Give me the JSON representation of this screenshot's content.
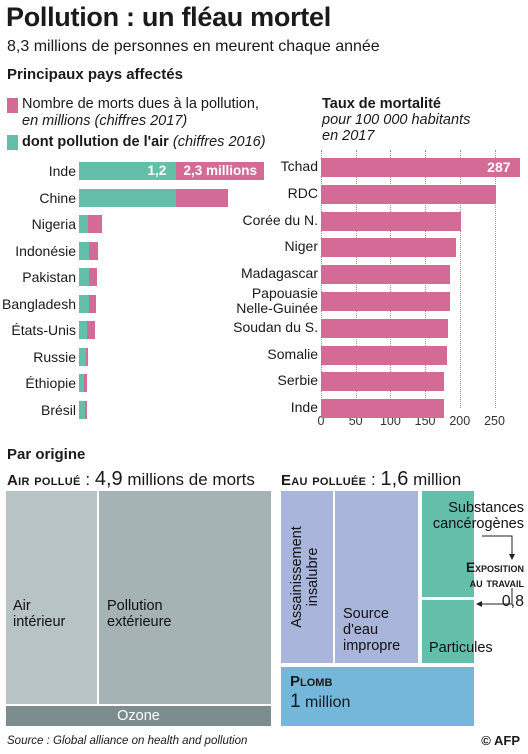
{
  "header": {
    "title": "Pollution : un fléau mortel",
    "subtitle": "8,3 millions de personnes en meurent chaque année",
    "section_title": "Principaux pays affectés"
  },
  "legend": {
    "deaths_label": "Nombre de morts dues à la pollution,",
    "deaths_sub": "en millions (chiffres 2017)",
    "air_label": "dont pollution de l'air",
    "air_sub": "(chiffres 2016)",
    "rate_title": "Taux de mortalité",
    "rate_sub1": "pour 100 000 habitants",
    "rate_sub2": "en 2017"
  },
  "colors": {
    "total": "#d46b97",
    "air": "#63bfaa",
    "air_interior": "#b7c3c4",
    "air_exterior": "#a6b3b5",
    "ozone": "#7c8d90",
    "water": "#a9b5db",
    "workplace": "#63bfaa",
    "lead": "#74b7db"
  },
  "chart_data": [
    {
      "type": "bar",
      "orientation": "horizontal",
      "title": "Principaux pays affectés",
      "categories": [
        "Inde",
        "Chine",
        "Nigeria",
        "Indonésie",
        "Pakistan",
        "Bangladesh",
        "États-Unis",
        "Russie",
        "Éthiopie",
        "Brésil"
      ],
      "series": [
        {
          "name": "Nombre de morts dues à la pollution, en millions (chiffres 2017)",
          "values": [
            2.3,
            1.85,
            0.28,
            0.23,
            0.22,
            0.21,
            0.2,
            0.11,
            0.1,
            0.1
          ]
        },
        {
          "name": "dont pollution de l'air (chiffres 2016)",
          "values": [
            1.2,
            1.2,
            0.11,
            0.12,
            0.13,
            0.12,
            0.1,
            0.09,
            0.06,
            0.07
          ]
        }
      ],
      "data_labels": [
        "1,2",
        "2,3 millions"
      ],
      "xlim": [
        0,
        2.3
      ]
    },
    {
      "type": "bar",
      "orientation": "horizontal",
      "title": "Taux de mortalité",
      "subtitle": "pour 100 000 habitants en 2017",
      "categories": [
        "Tchad",
        "RDC",
        "Corée du N.",
        "Niger",
        "Madagascar",
        "Papouasie Nelle-Guinée",
        "Soudan du S.",
        "Somalie",
        "Serbie",
        "Inde"
      ],
      "values": [
        287,
        252,
        202,
        195,
        186,
        186,
        183,
        182,
        177,
        177
      ],
      "data_labels": [
        "287"
      ],
      "xticks": [
        "0",
        "50",
        "100",
        "150",
        "200",
        "250"
      ],
      "xlim": [
        0,
        287
      ],
      "grid": true
    },
    {
      "type": "treemap",
      "title": "Par origine",
      "groups": [
        {
          "name": "Air pollué",
          "total_label": "4,9",
          "total_unit": "millions de morts",
          "items": [
            {
              "name": "Air intérieur",
              "value": 1.6
            },
            {
              "name": "Pollution extérieure",
              "value": 3.1
            },
            {
              "name": "Ozone",
              "value": 0.2
            }
          ]
        },
        {
          "name": "Eau polluée",
          "total_label": "1,6",
          "total_unit": "million",
          "items": [
            {
              "name": "Assainissement insalubre",
              "value": 0.8
            },
            {
              "name": "Source d'eau impropre",
              "value": 0.8
            }
          ]
        },
        {
          "name": "Exposition au travail",
          "total_label": "0,8",
          "items": [
            {
              "name": "Substances cancérogènes",
              "value": 0.4
            },
            {
              "name": "Particules",
              "value": 0.4
            }
          ]
        },
        {
          "name": "Plomb",
          "total_label": "1",
          "total_unit": "million",
          "items": []
        }
      ]
    }
  ],
  "labels": {
    "inde_air_value": "1,2",
    "inde_total_value": "2,3 millions",
    "tchad_value": "287",
    "origin_title": "Par origine",
    "air_head": "Air pollué",
    "air_value": "4,9",
    "air_unit": "millions de morts",
    "water_head": "Eau polluée",
    "water_value": "1,6",
    "water_unit": "million",
    "air_interior_l1": "Air",
    "air_interior_l2": "intérieur",
    "air_exterior_l1": "Pollution",
    "air_exterior_l2": "extérieure",
    "ozone": "Ozone",
    "sanitation_l1": "Assainissement",
    "sanitation_l2": "insalubre",
    "water_source_l1": "Source",
    "water_source_l2": "d'eau",
    "water_source_l3": "impropre",
    "carcinogens_l1": "Substances",
    "carcinogens_l2": "cancérogènes",
    "workplace_l1": "Exposition",
    "workplace_l2": "au travail",
    "workplace_value": "0,8",
    "particles": "Particules",
    "lead_head": "Plomb",
    "lead_value": "1",
    "lead_unit": "million"
  },
  "footer": {
    "source": "Source : Global alliance on health and pollution",
    "credit": "© AFP"
  }
}
